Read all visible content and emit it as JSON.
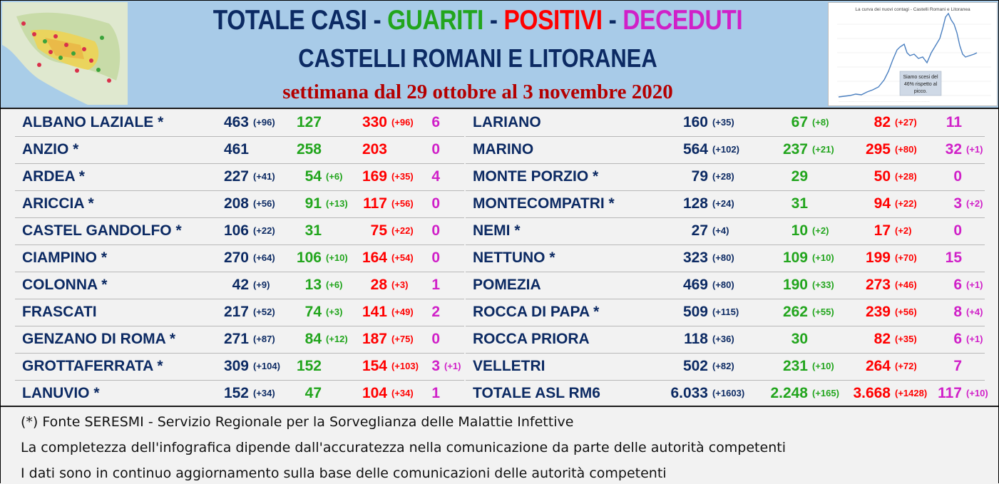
{
  "header": {
    "title_total": "TOTALE CASI",
    "title_recovered": "GUARITI",
    "title_positive": "POSITIVI",
    "title_deceased": "DECEDUTI",
    "separator": " - ",
    "subtitle": "CASTELLI ROMANI E LITORANEA",
    "week": "settimana dal 29 ottobre al 3 novembre 2020"
  },
  "chart_thumb": {
    "title": "La curva dei nuovi contagi - Castelli Romani e Litoranea",
    "annotation_line1": "Siamo scesi del",
    "annotation_line2": "46% rispetto al",
    "annotation_line3": "picco.",
    "line_color": "#4a7fc0"
  },
  "colors": {
    "total": "#0c2a63",
    "recovered": "#22a51d",
    "positive": "#ff0000",
    "deceased": "#d020c8"
  },
  "left_rows": [
    {
      "name": "ALBANO LAZIALE *",
      "total": "463",
      "total_inc": "(+96)",
      "recovered": "127",
      "recovered_inc": "",
      "positive": "330",
      "positive_inc": "(+96)",
      "deceased": "6",
      "deceased_inc": ""
    },
    {
      "name": "ANZIO *",
      "total": "461",
      "total_inc": "",
      "recovered": "258",
      "recovered_inc": "",
      "positive": "203",
      "positive_inc": "",
      "deceased": "0",
      "deceased_inc": ""
    },
    {
      "name": "ARDEA *",
      "total": "227",
      "total_inc": "(+41)",
      "recovered": "54",
      "recovered_inc": "(+6)",
      "positive": "169",
      "positive_inc": "(+35)",
      "deceased": "4",
      "deceased_inc": ""
    },
    {
      "name": "ARICCIA *",
      "total": "208",
      "total_inc": "(+56)",
      "recovered": "91",
      "recovered_inc": "(+13)",
      "positive": "117",
      "positive_inc": "(+56)",
      "deceased": "0",
      "deceased_inc": ""
    },
    {
      "name": "CASTEL GANDOLFO *",
      "total": "106",
      "total_inc": "(+22)",
      "recovered": "31",
      "recovered_inc": "",
      "positive": "75",
      "positive_inc": "(+22)",
      "deceased": "0",
      "deceased_inc": ""
    },
    {
      "name": "CIAMPINO *",
      "total": "270",
      "total_inc": "(+64)",
      "recovered": "106",
      "recovered_inc": "(+10)",
      "positive": "164",
      "positive_inc": "(+54)",
      "deceased": "0",
      "deceased_inc": ""
    },
    {
      "name": "COLONNA *",
      "total": "42",
      "total_inc": "(+9)",
      "recovered": "13",
      "recovered_inc": "(+6)",
      "positive": "28",
      "positive_inc": "(+3)",
      "deceased": "1",
      "deceased_inc": ""
    },
    {
      "name": "FRASCATI",
      "total": "217",
      "total_inc": "(+52)",
      "recovered": "74",
      "recovered_inc": "(+3)",
      "positive": "141",
      "positive_inc": "(+49)",
      "deceased": "2",
      "deceased_inc": ""
    },
    {
      "name": "GENZANO DI ROMA *",
      "total": "271",
      "total_inc": "(+87)",
      "recovered": "84",
      "recovered_inc": "(+12)",
      "positive": "187",
      "positive_inc": "(+75)",
      "deceased": "0",
      "deceased_inc": ""
    },
    {
      "name": "GROTTAFERRATA *",
      "total": "309",
      "total_inc": "(+104)",
      "recovered": "152",
      "recovered_inc": "",
      "positive": "154",
      "positive_inc": "(+103)",
      "deceased": "3",
      "deceased_inc": "(+1)"
    },
    {
      "name": "LANUVIO *",
      "total": "152",
      "total_inc": "(+34)",
      "recovered": "47",
      "recovered_inc": "",
      "positive": "104",
      "positive_inc": "(+34)",
      "deceased": "1",
      "deceased_inc": ""
    }
  ],
  "right_rows": [
    {
      "name": "LARIANO",
      "total": "160",
      "total_inc": "(+35)",
      "recovered": "67",
      "recovered_inc": "(+8)",
      "positive": "82",
      "positive_inc": "(+27)",
      "deceased": "11",
      "deceased_inc": ""
    },
    {
      "name": "MARINO",
      "total": "564",
      "total_inc": "(+102)",
      "recovered": "237",
      "recovered_inc": "(+21)",
      "positive": "295",
      "positive_inc": "(+80)",
      "deceased": "32",
      "deceased_inc": "(+1)"
    },
    {
      "name": "MONTE PORZIO *",
      "total": "79",
      "total_inc": "(+28)",
      "recovered": "29",
      "recovered_inc": "",
      "positive": "50",
      "positive_inc": "(+28)",
      "deceased": "0",
      "deceased_inc": ""
    },
    {
      "name": "MONTECOMPATRI *",
      "total": "128",
      "total_inc": "(+24)",
      "recovered": "31",
      "recovered_inc": "",
      "positive": "94",
      "positive_inc": "(+22)",
      "deceased": "3",
      "deceased_inc": "(+2)"
    },
    {
      "name": "NEMI *",
      "total": "27",
      "total_inc": "(+4)",
      "recovered": "10",
      "recovered_inc": "(+2)",
      "positive": "17",
      "positive_inc": "(+2)",
      "deceased": "0",
      "deceased_inc": ""
    },
    {
      "name": "NETTUNO *",
      "total": "323",
      "total_inc": "(+80)",
      "recovered": "109",
      "recovered_inc": "(+10)",
      "positive": "199",
      "positive_inc": "(+70)",
      "deceased": "15",
      "deceased_inc": ""
    },
    {
      "name": "POMEZIA",
      "total": "469",
      "total_inc": "(+80)",
      "recovered": "190",
      "recovered_inc": "(+33)",
      "positive": "273",
      "positive_inc": "(+46)",
      "deceased": "6",
      "deceased_inc": "(+1)"
    },
    {
      "name": "ROCCA DI PAPA *",
      "total": "509",
      "total_inc": "(+115)",
      "recovered": "262",
      "recovered_inc": "(+55)",
      "positive": "239",
      "positive_inc": "(+56)",
      "deceased": "8",
      "deceased_inc": "(+4)"
    },
    {
      "name": "ROCCA PRIORA",
      "total": "118",
      "total_inc": "(+36)",
      "recovered": "30",
      "recovered_inc": "",
      "positive": "82",
      "positive_inc": "(+35)",
      "deceased": "6",
      "deceased_inc": "(+1)"
    },
    {
      "name": "VELLETRI",
      "total": "502",
      "total_inc": "(+82)",
      "recovered": "231",
      "recovered_inc": "(+10)",
      "positive": "264",
      "positive_inc": "(+72)",
      "deceased": "7",
      "deceased_inc": ""
    },
    {
      "name": "TOTALE ASL RM6",
      "total": "6.033",
      "total_inc": "(+1603)",
      "recovered": "2.248",
      "recovered_inc": "(+165)",
      "positive": "3.668",
      "positive_inc": "(+1428)",
      "deceased": "117",
      "deceased_inc": "(+10)"
    }
  ],
  "footer": {
    "note1": "(*) Fonte SERESMI - Servizio Regionale per la Sorveglianza delle Malattie Infettive",
    "note2": "La completezza dell'infografica dipende dall'accuratezza nella comunicazione da parte delle autorità competenti",
    "note3": "I dati sono in continuo aggiornamento sulla base delle comunicazioni delle autorità competenti"
  }
}
